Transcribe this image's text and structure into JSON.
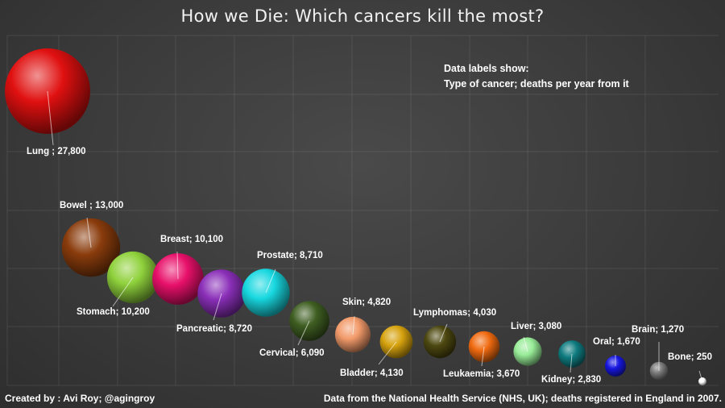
{
  "title": "How we Die: Which cancers kill the most?",
  "note": {
    "line1": "Data labels show:",
    "line2": "Type of cancer; deaths per year from it"
  },
  "footer": {
    "credit": "Created by : Avi Roy; @agingroy",
    "source": "Data from the National Health Service (NHS, UK); deaths registered in England in 2007."
  },
  "chart_data": {
    "type": "bubble",
    "title": "How we Die: Which cancers kill the most?",
    "grid": true,
    "series": [
      {
        "name": "Lung",
        "label": "Lung ; 27,800",
        "value": 27800,
        "color": "#e01010"
      },
      {
        "name": "Bowel",
        "label": "Bowel ; 13,000",
        "value": 13000,
        "color": "#8a3c0c"
      },
      {
        "name": "Stomach",
        "label": "Stomach; 10,200",
        "value": 10200,
        "color": "#8fd13c"
      },
      {
        "name": "Breast",
        "label": "Breast; 10,100",
        "value": 10100,
        "color": "#e8106a"
      },
      {
        "name": "Pancreatic",
        "label": "Pancreatic; 8,720",
        "value": 8720,
        "color": "#8a2fb8"
      },
      {
        "name": "Prostate",
        "label": "Prostate; 8,710",
        "value": 8710,
        "color": "#18d8e0"
      },
      {
        "name": "Cervical",
        "label": "Cervical; 6,090",
        "value": 6090,
        "color": "#3f5e22"
      },
      {
        "name": "Skin",
        "label": "Skin; 4,820",
        "value": 4820,
        "color": "#f29a6a"
      },
      {
        "name": "Bladder",
        "label": "Bladder; 4,130",
        "value": 4130,
        "color": "#d6a20e"
      },
      {
        "name": "Lymphomas",
        "label": "Lymphomas; 4,030",
        "value": 4030,
        "color": "#4d4810"
      },
      {
        "name": "Leukaemia",
        "label": "Leukaemia; 3,670",
        "value": 3670,
        "color": "#f06a10"
      },
      {
        "name": "Liver",
        "label": "Liver; 3,080",
        "value": 3080,
        "color": "#98ec98"
      },
      {
        "name": "Kidney",
        "label": "Kidney; 2,830",
        "value": 2830,
        "color": "#0f7c80"
      },
      {
        "name": "Oral",
        "label": "Oral; 1,670",
        "value": 1670,
        "color": "#1616e0"
      },
      {
        "name": "Brain",
        "label": "Brain; 1,270",
        "value": 1270,
        "color": "#7a7a7a"
      },
      {
        "name": "Bone",
        "label": "Bone; 250",
        "value": 250,
        "color": "#ffffff"
      }
    ]
  }
}
